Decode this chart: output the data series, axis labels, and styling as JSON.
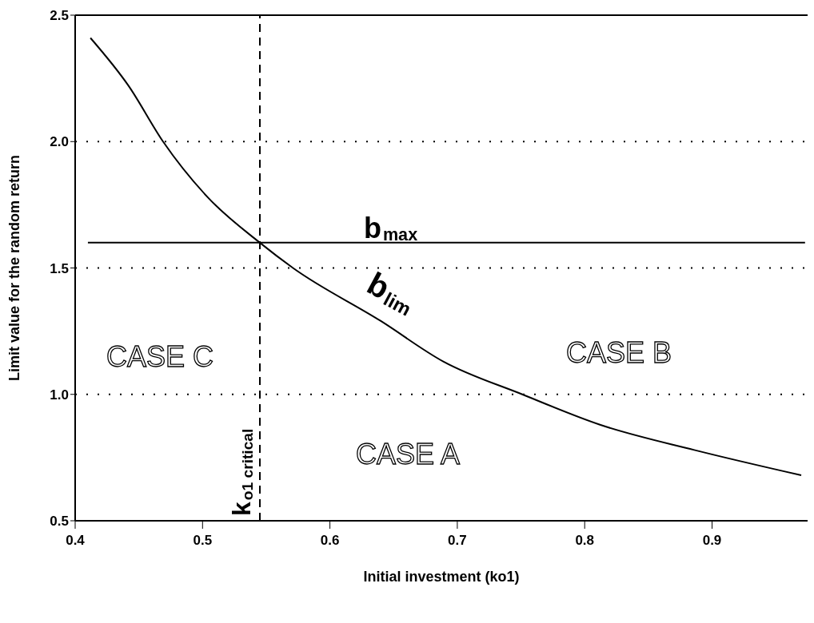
{
  "chart_data": {
    "type": "line",
    "xlabel": "Initial investment (ko1)",
    "ylabel": "Limit value for the random return",
    "xlim": [
      0.4,
      0.975
    ],
    "ylim": [
      0.5,
      2.5
    ],
    "xticks": [
      0.4,
      0.5,
      0.6,
      0.7,
      0.8,
      0.9
    ],
    "yticks": [
      0.5,
      {
        "value": 1,
        "label": "1.0"
      },
      1.5,
      {
        "value": 2,
        "label": "2.0"
      },
      2.5
    ],
    "grid": "y",
    "marker": "none",
    "series": [
      {
        "name": "b$_{lim}$",
        "color": "#000000",
        "x": [
          0.412,
          0.442,
          0.469,
          0.504,
          0.545,
          0.571,
          0.64,
          0.689,
          0.751,
          0.812,
          0.886,
          0.97
        ],
        "values": [
          2.41,
          2.22,
          2.0,
          1.78,
          1.6,
          1.5,
          1.29,
          1.13,
          1.0,
          0.88,
          0.78,
          0.68
        ]
      },
      {
        "name": "b$_{max}$",
        "color": "#000000",
        "x": [
          0.41,
          0.973
        ],
        "values": [
          1.6,
          1.6
        ]
      }
    ],
    "ref_lines": [
      {
        "axis": "x",
        "value": 0.545,
        "label": "k$_{o1 critical}$",
        "line_style": "dashed",
        "color": "#000000"
      }
    ],
    "annotations": [
      "CASE C",
      "CASE B",
      "CASE A"
    ]
  }
}
